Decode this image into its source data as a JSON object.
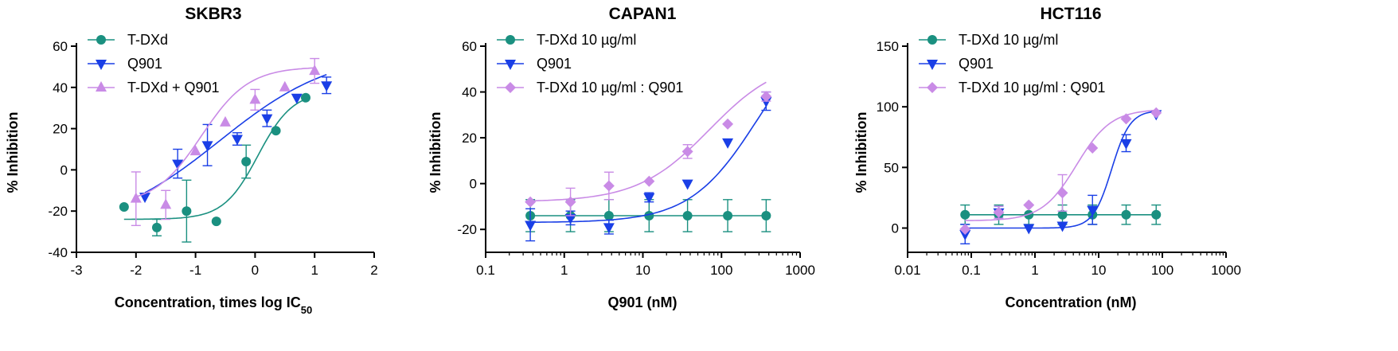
{
  "chart_data": [
    {
      "type": "scatter",
      "title": "SKBR3",
      "xlabel": "Concentration, times log IC",
      "xlabel_sub": "50",
      "ylabel": "% Inhibition",
      "xscale": "linear",
      "xlim": [
        -3,
        2
      ],
      "ylim": [
        -40,
        60
      ],
      "xticks": [
        -3,
        -2,
        -1,
        0,
        1,
        2
      ],
      "xtick_labels": [
        "-3",
        "-2",
        "-1",
        "0",
        "1",
        "2"
      ],
      "yticks": [
        -40,
        -20,
        0,
        20,
        40,
        60
      ],
      "ytick_labels": [
        "-40",
        "-20",
        "0",
        "20",
        "40",
        "60"
      ],
      "legend_position": "top-left",
      "series": [
        {
          "name": "T-DXd",
          "color": "#1a9080",
          "marker": "circle",
          "points": [
            {
              "x": -2.2,
              "y": -18,
              "err": 0
            },
            {
              "x": -1.65,
              "y": -28,
              "err": 4
            },
            {
              "x": -1.15,
              "y": -20,
              "err": 15
            },
            {
              "x": -0.65,
              "y": -25,
              "err": 0
            },
            {
              "x": -0.15,
              "y": 4,
              "err": 8
            },
            {
              "x": 0.35,
              "y": 19,
              "err": 0
            },
            {
              "x": 0.85,
              "y": 35,
              "err": 0
            }
          ],
          "fit": {
            "bottom": -24,
            "top": 38,
            "mid": 0.05,
            "slope": 1.5
          }
        },
        {
          "name": "Q901",
          "color": "#1a3fe6",
          "marker": "triangle-down",
          "points": [
            {
              "x": -1.85,
              "y": -13,
              "err": 0
            },
            {
              "x": -1.3,
              "y": 3,
              "err": 7
            },
            {
              "x": -0.8,
              "y": 12,
              "err": 10
            },
            {
              "x": -0.3,
              "y": 15,
              "err": 3
            },
            {
              "x": 0.2,
              "y": 25,
              "err": 4
            },
            {
              "x": 0.7,
              "y": 35,
              "err": 0
            },
            {
              "x": 1.2,
              "y": 41,
              "err": 4
            }
          ],
          "fit": {
            "bottom": -30,
            "top": 58,
            "mid": -0.6,
            "slope": 0.45
          }
        },
        {
          "name": "T-DXd + Q901",
          "color": "#c98be6",
          "marker": "triangle-up",
          "points": [
            {
              "x": -2.0,
              "y": -14,
              "err": 13
            },
            {
              "x": -1.5,
              "y": -17,
              "err": 7
            },
            {
              "x": -1.0,
              "y": 9,
              "err": 0
            },
            {
              "x": -0.5,
              "y": 23,
              "err": 0
            },
            {
              "x": 0.0,
              "y": 34,
              "err": 5
            },
            {
              "x": 0.5,
              "y": 40,
              "err": 0
            },
            {
              "x": 1.0,
              "y": 48,
              "err": 6
            }
          ],
          "fit": {
            "bottom": -17,
            "top": 50,
            "mid": -0.9,
            "slope": 1.1
          }
        }
      ]
    },
    {
      "type": "scatter",
      "title": "CAPAN1",
      "xlabel": "Q901 (nM)",
      "ylabel": "% Inhibition",
      "xscale": "log",
      "xlim": [
        0.1,
        1000
      ],
      "ylim": [
        -30,
        60
      ],
      "xticks": [
        0.1,
        1,
        10,
        100,
        1000
      ],
      "xtick_labels": [
        "0.1",
        "1",
        "10",
        "100",
        "1000"
      ],
      "yticks": [
        -20,
        0,
        20,
        40,
        60
      ],
      "ytick_labels": [
        "-20",
        "0",
        "20",
        "40",
        "60"
      ],
      "legend_position": "top-left",
      "series": [
        {
          "name": "T-DXd 10 µg/ml",
          "color": "#1a9080",
          "marker": "circle",
          "points": [
            {
              "x": 0.37,
              "y": -14,
              "err": 7
            },
            {
              "x": 1.2,
              "y": -14,
              "err": 7
            },
            {
              "x": 3.7,
              "y": -14,
              "err": 7
            },
            {
              "x": 12,
              "y": -14,
              "err": 7
            },
            {
              "x": 37,
              "y": -14,
              "err": 7
            },
            {
              "x": 120,
              "y": -14,
              "err": 7
            },
            {
              "x": 370,
              "y": -14,
              "err": 7
            }
          ],
          "fit": {
            "bottom": -14,
            "top": -14,
            "mid": 10,
            "slope": 1
          }
        },
        {
          "name": "Q901",
          "color": "#1a3fe6",
          "marker": "triangle-down",
          "points": [
            {
              "x": 0.37,
              "y": -18,
              "err": 7
            },
            {
              "x": 1.2,
              "y": -15,
              "err": 3
            },
            {
              "x": 3.7,
              "y": -19,
              "err": 3
            },
            {
              "x": 12,
              "y": -6,
              "err": 2
            },
            {
              "x": 37,
              "y": 0,
              "err": 0
            },
            {
              "x": 120,
              "y": 18,
              "err": 0
            },
            {
              "x": 370,
              "y": 36,
              "err": 4
            }
          ],
          "fit": {
            "bottom": -17,
            "top": 75,
            "mid": 300,
            "slope": 1.0
          }
        },
        {
          "name": "T-DXd 10 µg/ml : Q901",
          "color": "#c98be6",
          "marker": "diamond",
          "points": [
            {
              "x": 0.37,
              "y": -8,
              "err": 0
            },
            {
              "x": 1.2,
              "y": -8,
              "err": 6
            },
            {
              "x": 3.7,
              "y": -1,
              "err": 6
            },
            {
              "x": 12,
              "y": 1,
              "err": 0
            },
            {
              "x": 37,
              "y": 14,
              "err": 3
            },
            {
              "x": 120,
              "y": 26,
              "err": 0
            },
            {
              "x": 370,
              "y": 38,
              "err": 2
            }
          ],
          "fit": {
            "bottom": -8,
            "top": 55,
            "mid": 70,
            "slope": 0.95
          }
        }
      ]
    },
    {
      "type": "scatter",
      "title": "HCT116",
      "xlabel": "Concentration (nM)",
      "ylabel": "% Inhibition",
      "xscale": "log",
      "xlim": [
        0.01,
        1000
      ],
      "ylim": [
        -20,
        150
      ],
      "xticks": [
        0.01,
        0.1,
        1,
        10,
        100,
        1000
      ],
      "xtick_labels": [
        "0.01",
        "0.1",
        "1",
        "10",
        "100",
        "1000"
      ],
      "yticks": [
        0,
        50,
        100,
        150
      ],
      "ytick_labels": [
        "0",
        "50",
        "100",
        "150"
      ],
      "legend_position": "top-left",
      "series": [
        {
          "name": "T-DXd 10 µg/ml",
          "color": "#1a9080",
          "marker": "circle",
          "points": [
            {
              "x": 0.08,
              "y": 11,
              "err": 8
            },
            {
              "x": 0.27,
              "y": 11,
              "err": 8
            },
            {
              "x": 0.8,
              "y": 11,
              "err": 8
            },
            {
              "x": 2.7,
              "y": 11,
              "err": 8
            },
            {
              "x": 8,
              "y": 11,
              "err": 8
            },
            {
              "x": 27,
              "y": 11,
              "err": 8
            },
            {
              "x": 80,
              "y": 11,
              "err": 8
            }
          ],
          "fit": {
            "bottom": 11,
            "top": 11,
            "mid": 10,
            "slope": 1
          }
        },
        {
          "name": "Q901",
          "color": "#1a3fe6",
          "marker": "triangle-down",
          "points": [
            {
              "x": 0.08,
              "y": -5,
              "err": 8
            },
            {
              "x": 0.27,
              "y": 13,
              "err": 5
            },
            {
              "x": 0.8,
              "y": 0,
              "err": 0
            },
            {
              "x": 2.7,
              "y": 2,
              "err": 0
            },
            {
              "x": 8,
              "y": 15,
              "err": 12
            },
            {
              "x": 27,
              "y": 70,
              "err": 7
            },
            {
              "x": 80,
              "y": 94,
              "err": 0
            }
          ],
          "fit": {
            "bottom": 0,
            "top": 97,
            "mid": 16,
            "slope": 3.0
          }
        },
        {
          "name": "T-DXd 10 µg/ml : Q901",
          "color": "#c98be6",
          "marker": "diamond",
          "points": [
            {
              "x": 0.08,
              "y": -1,
              "err": 0
            },
            {
              "x": 0.27,
              "y": 13,
              "err": 5
            },
            {
              "x": 0.8,
              "y": 19,
              "err": 0
            },
            {
              "x": 2.7,
              "y": 29,
              "err": 15
            },
            {
              "x": 8,
              "y": 66,
              "err": 0
            },
            {
              "x": 27,
              "y": 90,
              "err": 0
            },
            {
              "x": 80,
              "y": 95,
              "err": 0
            }
          ],
          "fit": {
            "bottom": 6,
            "top": 98,
            "mid": 4.5,
            "slope": 1.6
          }
        }
      ]
    }
  ]
}
